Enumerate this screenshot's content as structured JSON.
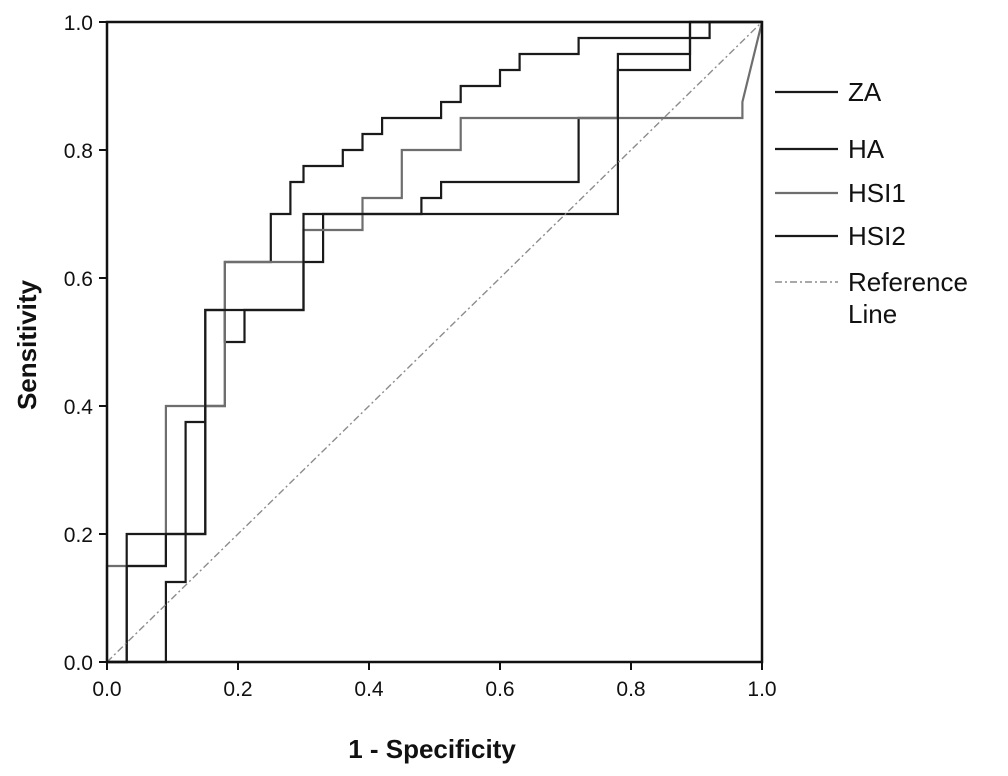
{
  "chart_data": {
    "type": "line",
    "title": "",
    "xlabel": "1 - Specificity",
    "ylabel": "Sensitivity",
    "xlim": [
      0,
      1
    ],
    "ylim": [
      0,
      1
    ],
    "xticks": [
      "0.0",
      "0.2",
      "0.4",
      "0.6",
      "0.8",
      "1.0"
    ],
    "yticks": [
      "0.0",
      "0.2",
      "0.4",
      "0.6",
      "0.8",
      "1.0"
    ],
    "grid": false,
    "legend_position": "right",
    "series": [
      {
        "name": "ZA",
        "color": "#1a1a1a",
        "x": [
          0,
          0.03,
          0.03,
          0.15,
          0.15,
          0.18,
          0.18,
          0.25,
          0.25,
          0.28,
          0.28,
          0.3,
          0.3,
          0.36,
          0.36,
          0.39,
          0.39,
          0.42,
          0.42,
          0.51,
          0.51,
          0.54,
          0.54,
          0.6,
          0.6,
          0.63,
          0.63,
          0.72,
          0.72,
          0.89,
          0.89,
          1.0
        ],
        "y": [
          0,
          0,
          0.2,
          0.2,
          0.4,
          0.4,
          0.625,
          0.625,
          0.7,
          0.7,
          0.75,
          0.75,
          0.775,
          0.775,
          0.8,
          0.8,
          0.825,
          0.825,
          0.85,
          0.85,
          0.875,
          0.875,
          0.9,
          0.9,
          0.925,
          0.925,
          0.95,
          0.95,
          0.975,
          0.975,
          1.0,
          1.0
        ]
      },
      {
        "name": "HA",
        "color": "#1a1a1a",
        "x": [
          0,
          0.09,
          0.09,
          0.12,
          0.12,
          0.15,
          0.15,
          0.18,
          0.18,
          0.21,
          0.21,
          0.3,
          0.3,
          0.33,
          0.33,
          0.48,
          0.48,
          0.51,
          0.51,
          0.72,
          0.72,
          0.78,
          0.78,
          0.89,
          0.89,
          0.92,
          0.92,
          1.0
        ],
        "y": [
          0,
          0,
          0.125,
          0.125,
          0.375,
          0.375,
          0.55,
          0.55,
          0.5,
          0.5,
          0.55,
          0.55,
          0.625,
          0.625,
          0.7,
          0.7,
          0.725,
          0.725,
          0.75,
          0.75,
          0.85,
          0.85,
          0.95,
          0.95,
          0.975,
          0.975,
          1.0,
          1.0
        ]
      },
      {
        "name": "HSI1",
        "color": "#6e6e6e",
        "x": [
          0,
          0.0,
          0.09,
          0.09,
          0.18,
          0.18,
          0.3,
          0.3,
          0.39,
          0.39,
          0.45,
          0.45,
          0.54,
          0.54,
          0.57,
          0.57,
          0.97,
          0.97,
          1.0
        ],
        "y": [
          0,
          0.15,
          0.15,
          0.4,
          0.4,
          0.625,
          0.625,
          0.675,
          0.675,
          0.725,
          0.725,
          0.8,
          0.8,
          0.85,
          0.85,
          0.85,
          0.85,
          0.875,
          1.0
        ]
      },
      {
        "name": "HSI2",
        "color": "#1a1a1a",
        "x": [
          0,
          0.03,
          0.03,
          0.09,
          0.09,
          0.12,
          0.12,
          0.15,
          0.15,
          0.18,
          0.18,
          0.24,
          0.24,
          0.3,
          0.3,
          0.36,
          0.36,
          0.39,
          0.39,
          0.45,
          0.45,
          0.51,
          0.51,
          0.6,
          0.6,
          0.78,
          0.78,
          0.89,
          0.89,
          1.0
        ],
        "y": [
          0,
          0,
          0.15,
          0.15,
          0.2,
          0.2,
          0.2,
          0.2,
          0.55,
          0.55,
          0.55,
          0.55,
          0.55,
          0.55,
          0.7,
          0.7,
          0.7,
          0.7,
          0.7,
          0.7,
          0.7,
          0.7,
          0.7,
          0.7,
          0.7,
          0.7,
          0.925,
          0.925,
          1.0,
          1.0
        ]
      },
      {
        "name": "Reference Line",
        "color": "#8c8c8c",
        "dashed": true,
        "x": [
          0,
          1
        ],
        "y": [
          0,
          1
        ]
      }
    ],
    "legend": [
      {
        "label": "ZA",
        "color": "#1a1a1a",
        "dashed": false
      },
      {
        "label": "HA",
        "color": "#1a1a1a",
        "dashed": false
      },
      {
        "label": "HSI1",
        "color": "#6e6e6e",
        "dashed": false
      },
      {
        "label": "HSI2",
        "color": "#1a1a1a",
        "dashed": false
      },
      {
        "label": "Reference",
        "label2": "Line",
        "color": "#8c8c8c",
        "dashed": true
      }
    ]
  }
}
